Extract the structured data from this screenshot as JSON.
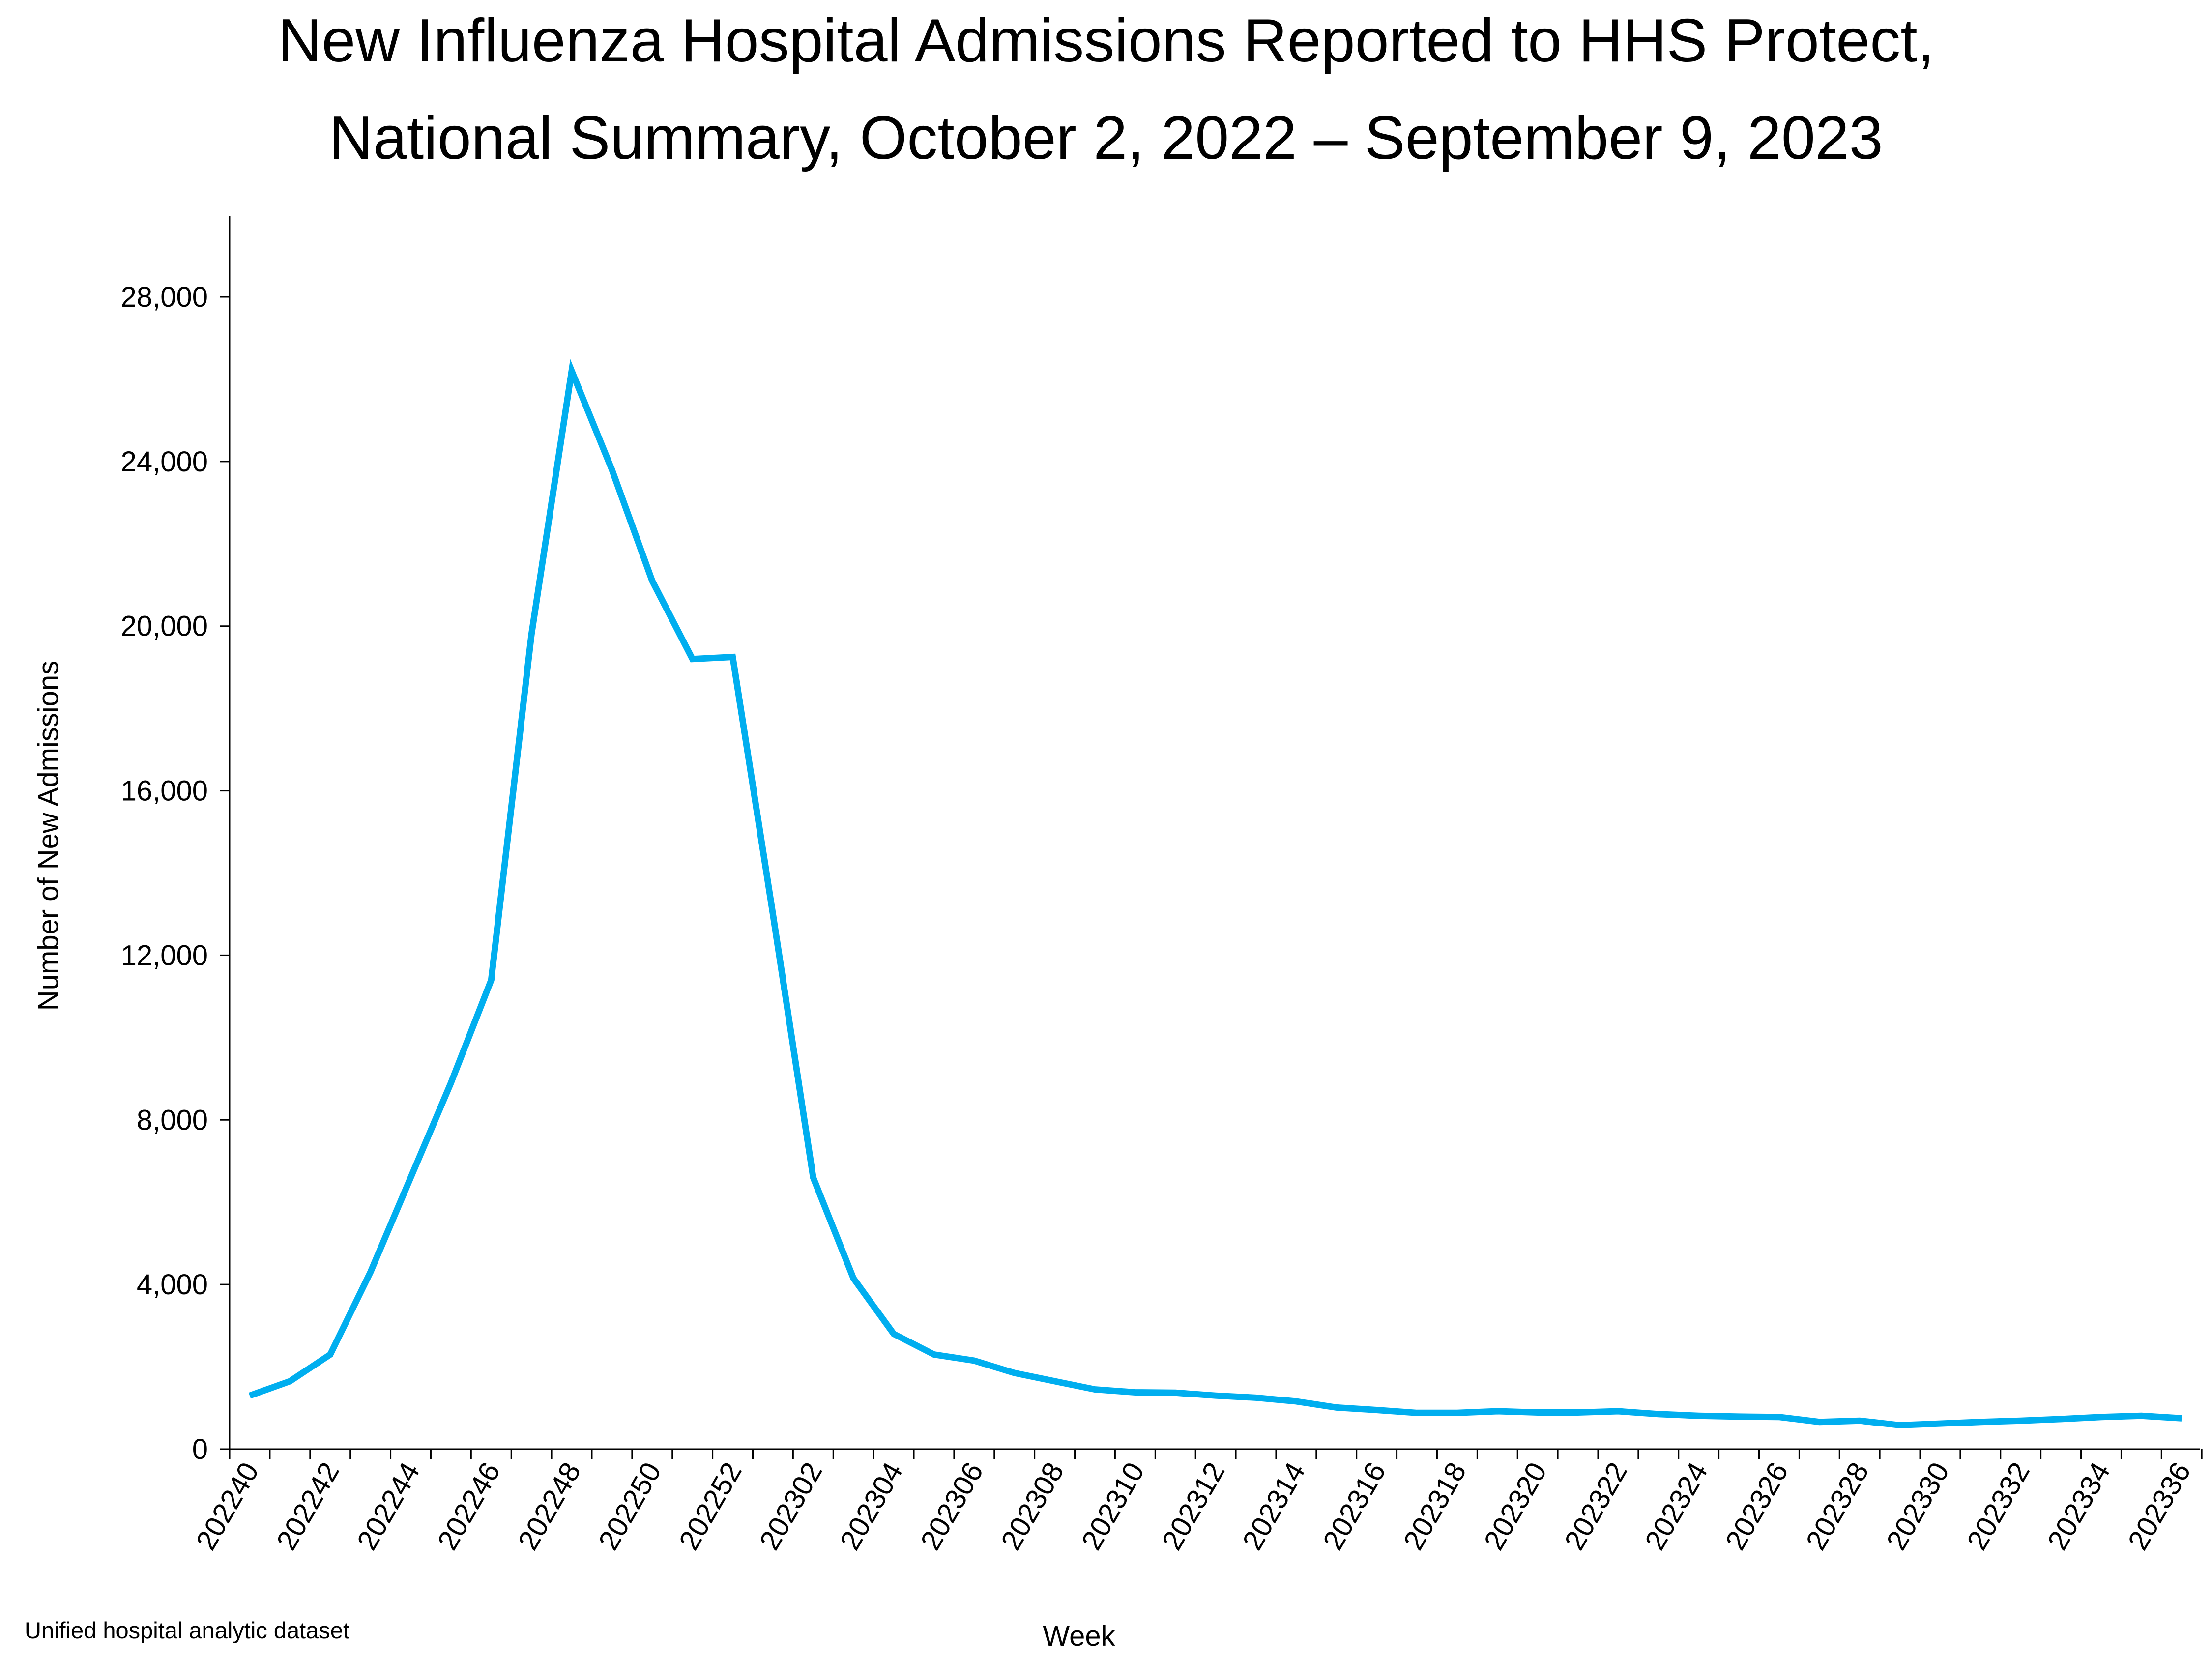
{
  "chart_data": {
    "type": "line",
    "title": [
      "New Influenza Hospital Admissions Reported to HHS Protect,",
      "National Summary, October 2, 2022 – September 9, 2023"
    ],
    "xlabel": "Week",
    "ylabel": "Number of New Admissions",
    "ylim": [
      0,
      30000
    ],
    "yticks": [
      0,
      4000,
      8000,
      12000,
      16000,
      20000,
      24000,
      28000
    ],
    "ytick_labels": [
      "0",
      "4,000",
      "8,000",
      "12,000",
      "16,000",
      "20,000",
      "24,000",
      "28,000"
    ],
    "grid": false,
    "legend": "none",
    "line_color": "#00AEEF",
    "x": [
      "202240",
      "202241",
      "202242",
      "202243",
      "202244",
      "202245",
      "202246",
      "202247",
      "202248",
      "202249",
      "202250",
      "202251",
      "202252",
      "202301",
      "202302",
      "202303",
      "202304",
      "202305",
      "202306",
      "202307",
      "202308",
      "202309",
      "202310",
      "202311",
      "202312",
      "202313",
      "202314",
      "202315",
      "202316",
      "202317",
      "202318",
      "202319",
      "202320",
      "202321",
      "202322",
      "202323",
      "202324",
      "202325",
      "202326",
      "202327",
      "202328",
      "202329",
      "202330",
      "202331",
      "202332",
      "202333",
      "202334",
      "202335",
      "202336"
    ],
    "x_tick_labels": [
      "202240",
      "202242",
      "202244",
      "202246",
      "202248",
      "202250",
      "202252",
      "202302",
      "202304",
      "202306",
      "202308",
      "202310",
      "202312",
      "202314",
      "202316",
      "202318",
      "202320",
      "202322",
      "202324",
      "202326",
      "202328",
      "202330",
      "202332",
      "202334",
      "202336"
    ],
    "series": [
      {
        "values": [
          1300,
          1650,
          2300,
          4300,
          6600,
          8900,
          11400,
          19800,
          26200,
          23800,
          21100,
          19200,
          19250,
          13000,
          6600,
          4150,
          2800,
          2300,
          2150,
          1850,
          1650,
          1450,
          1380,
          1370,
          1300,
          1250,
          1160,
          1010,
          950,
          880,
          880,
          920,
          890,
          890,
          920,
          850,
          810,
          790,
          780,
          660,
          690,
          580,
          620,
          660,
          690,
          730,
          780,
          810,
          750
        ]
      }
    ]
  },
  "source_note": "Unified hospital analytic dataset"
}
